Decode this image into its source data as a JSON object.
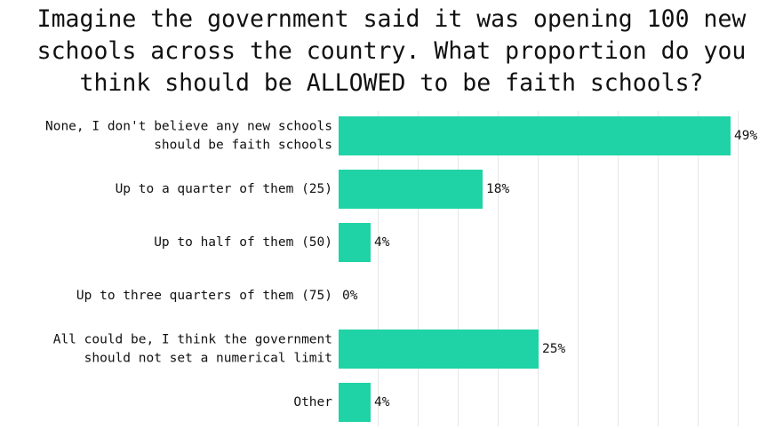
{
  "title_lines": [
    "Imagine the government said it was opening 100 new",
    "schools across the country. What proportion do you",
    "think should be ALLOWED to be faith schools?"
  ],
  "colors": {
    "bar": "#1fd3a6",
    "grid": "#e6e6e6",
    "text": "#111111"
  },
  "chart_data": {
    "type": "bar",
    "orientation": "horizontal",
    "title": "Imagine the government said it was opening 100 new schools across the country. What proportion do you think should be ALLOWED to be faith schools?",
    "categories": [
      [
        "None, I don't believe any new schools",
        "should be faith schools"
      ],
      [
        "Up to a quarter of them (25)"
      ],
      [
        "Up to half of them (50)"
      ],
      [
        "Up to three quarters of them (75)"
      ],
      [
        "All could be, I think the government",
        "should not set a numerical limit"
      ],
      [
        "Other"
      ]
    ],
    "values": [
      49,
      18,
      4,
      0,
      25,
      4
    ],
    "value_labels": [
      "49%",
      "18%",
      "4%",
      "0%",
      "25%",
      "4%"
    ],
    "xlim": [
      0,
      55
    ],
    "grid": true,
    "legend": "none"
  }
}
